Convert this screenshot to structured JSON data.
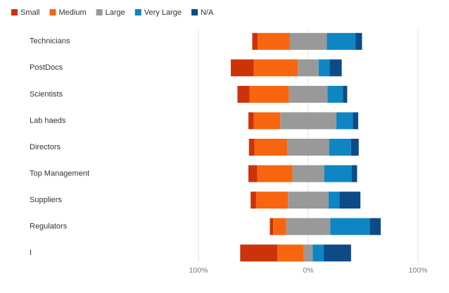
{
  "chart_data": {
    "type": "diverging_bar",
    "categories": [
      "Technicians",
      "PostDocs",
      "Scientists",
      "Lab haeds",
      "Directors",
      "Top Management",
      "Suppliers",
      "Regulators",
      "I"
    ],
    "series": [
      {
        "name": "Small",
        "color": "#cc3308",
        "values": [
          5,
          21,
          11,
          5,
          5,
          8,
          5,
          3,
          34
        ]
      },
      {
        "name": "Medium",
        "color": "#f7660f",
        "values": [
          29,
          40,
          36,
          24,
          30,
          32,
          29,
          12,
          24
        ]
      },
      {
        "name": "Large",
        "color": "#999999",
        "values": [
          34,
          19,
          35,
          51,
          38,
          29,
          37,
          40,
          8
        ]
      },
      {
        "name": "Very Large",
        "color": "#0f86c4",
        "values": [
          26,
          10,
          14,
          15,
          20,
          25,
          10,
          36,
          10
        ]
      },
      {
        "name": "N/A",
        "color": "#0d4b86",
        "values": [
          6,
          11,
          4,
          5,
          7,
          5,
          19,
          10,
          25
        ]
      }
    ],
    "xlim": [
      -100,
      100
    ],
    "xticks": [
      {
        "value": -100,
        "label": "100%"
      },
      {
        "value": 0,
        "label": "0%"
      },
      {
        "value": 100,
        "label": "100%"
      }
    ],
    "grid": true
  }
}
